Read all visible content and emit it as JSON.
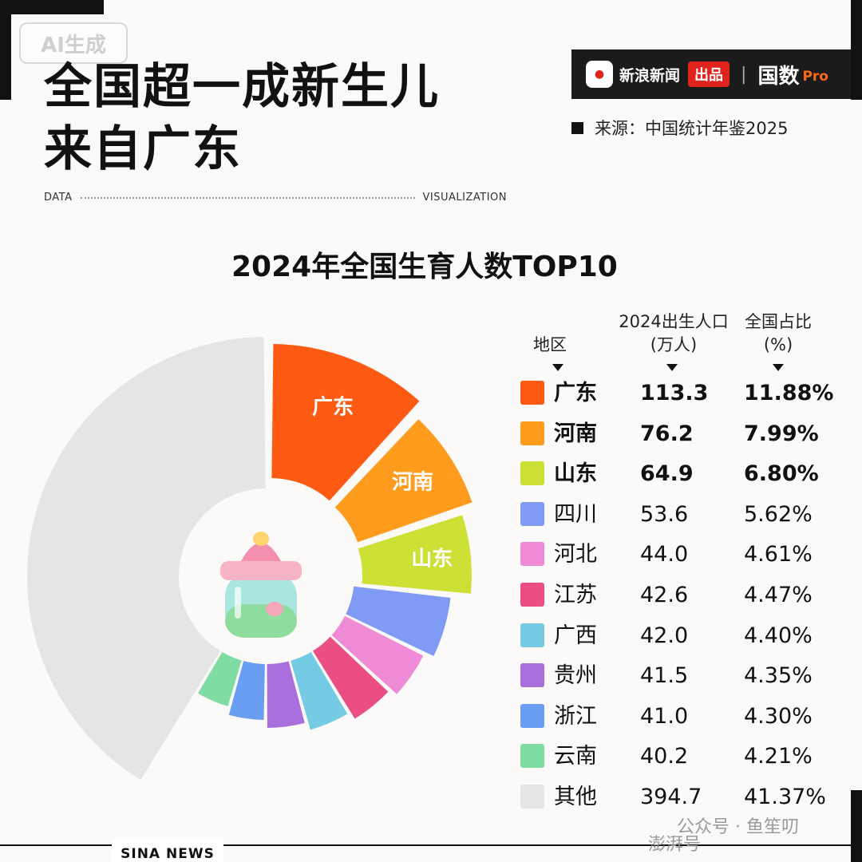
{
  "badge": {
    "ai": "AI生成"
  },
  "header": {
    "title_line1": "全国超一成新生儿",
    "title_line2": "来自广东",
    "brand_name": "新浪新闻",
    "brand_tag": "出品",
    "brand_product": "国数",
    "brand_pro": "Pro",
    "source": "来源：中国统计年鉴2025",
    "data_label": "DATA",
    "vis_label": "VISUALIZATION"
  },
  "table_headers": {
    "region": "地区",
    "births_line1": "2024出生人口",
    "births_line2": "(万人)",
    "share_line1": "全国占比",
    "share_line2": "(%)"
  },
  "chart_data": {
    "type": "pie",
    "title": "2024年全国生育人数TOP10",
    "slices": [
      {
        "label": "广东",
        "value": 113.3,
        "share": "11.88%",
        "color": "#ff5a14",
        "on_chart_label": true,
        "bold": true
      },
      {
        "label": "河南",
        "value": 76.2,
        "share": "7.99%",
        "color": "#ff9c1e",
        "on_chart_label": true,
        "bold": true
      },
      {
        "label": "山东",
        "value": 64.9,
        "share": "6.80%",
        "color": "#cde036",
        "on_chart_label": true,
        "bold": true
      },
      {
        "label": "四川",
        "value": 53.6,
        "share": "5.62%",
        "color": "#7f9bf6",
        "on_chart_label": false,
        "bold": false
      },
      {
        "label": "河北",
        "value": 44.0,
        "share": "4.61%",
        "color": "#ee8ad6",
        "on_chart_label": false,
        "bold": false
      },
      {
        "label": "江苏",
        "value": 42.6,
        "share": "4.47%",
        "color": "#ea4e82",
        "on_chart_label": false,
        "bold": false
      },
      {
        "label": "广西",
        "value": 42.0,
        "share": "4.40%",
        "color": "#74cbe3",
        "on_chart_label": false,
        "bold": false
      },
      {
        "label": "贵州",
        "value": 41.5,
        "share": "4.35%",
        "color": "#a970dd",
        "on_chart_label": false,
        "bold": false
      },
      {
        "label": "浙江",
        "value": 41.0,
        "share": "4.30%",
        "color": "#6a9ef2",
        "on_chart_label": false,
        "bold": false
      },
      {
        "label": "云南",
        "value": 40.2,
        "share": "4.21%",
        "color": "#7fdca3",
        "on_chart_label": false,
        "bold": false
      },
      {
        "label": "其他",
        "value": 394.7,
        "share": "41.37%",
        "color": "#e5e5e5",
        "on_chart_label": false,
        "bold": false
      }
    ]
  },
  "footer": {
    "brand": "SINA NEWS"
  },
  "watermark": {
    "wechat": "公众号 · 鱼笙叨",
    "other": "澎湃号"
  }
}
